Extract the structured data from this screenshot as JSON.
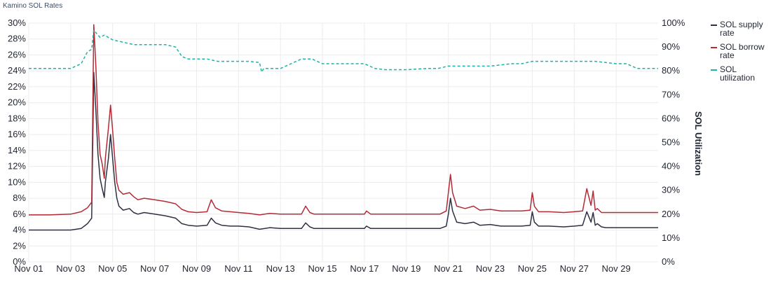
{
  "title": "Kamino SOL Rates",
  "colors": {
    "supply": "#2d3142",
    "borrow": "#b42a35",
    "utilization": "#1fb3a5",
    "grid": "#ececec"
  },
  "chart_data": {
    "type": "line",
    "title": "Kamino SOL Rates",
    "ylabel": "",
    "y2label": "SOL Utilization",
    "ylim": [
      0,
      30
    ],
    "y2lim": [
      0,
      100
    ],
    "y_ticks": [
      "0%",
      "2%",
      "4%",
      "6%",
      "8%",
      "10%",
      "12%",
      "14%",
      "16%",
      "18%",
      "20%",
      "22%",
      "24%",
      "26%",
      "28%",
      "30%"
    ],
    "y2_ticks": [
      "0%",
      "10%",
      "20%",
      "30%",
      "40%",
      "50%",
      "60%",
      "70%",
      "80%",
      "90%",
      "100%"
    ],
    "x_ticks": [
      {
        "day": 1,
        "label": "Nov 01"
      },
      {
        "day": 3,
        "label": "Nov 03"
      },
      {
        "day": 5,
        "label": "Nov 05"
      },
      {
        "day": 7,
        "label": "Nov 07"
      },
      {
        "day": 9,
        "label": "Nov 09"
      },
      {
        "day": 11,
        "label": "Nov 11"
      },
      {
        "day": 13,
        "label": "Nov 13"
      },
      {
        "day": 15,
        "label": "Nov 15"
      },
      {
        "day": 17,
        "label": "Nov 17"
      },
      {
        "day": 19,
        "label": "Nov 19"
      },
      {
        "day": 21,
        "label": "Nov 21"
      },
      {
        "day": 23,
        "label": "Nov 23"
      },
      {
        "day": 25,
        "label": "Nov 25"
      },
      {
        "day": 27,
        "label": "Nov 27"
      },
      {
        "day": 29,
        "label": "Nov 29"
      }
    ],
    "xlim": [
      1,
      31
    ],
    "grid": true,
    "legend_position": "right",
    "series": [
      {
        "name": "SOL supply rate",
        "axis": "left",
        "style": "solid",
        "color": "#2d3142",
        "x": [
          1,
          2,
          3,
          3.5,
          3.8,
          4.0,
          4.1,
          4.2,
          4.3,
          4.4,
          4.5,
          4.6,
          4.65,
          4.8,
          4.9,
          5.0,
          5.1,
          5.2,
          5.3,
          5.5,
          5.8,
          6.0,
          6.2,
          6.5,
          7.0,
          7.5,
          8.0,
          8.3,
          8.6,
          9.0,
          9.5,
          9.7,
          9.9,
          10.2,
          10.6,
          11.0,
          11.5,
          12.0,
          12.5,
          13.0,
          14.0,
          14.2,
          14.4,
          14.6,
          15.0,
          16.0,
          17.0,
          17.1,
          17.3,
          18.0,
          19.0,
          20.0,
          20.6,
          20.9,
          21.0,
          21.1,
          21.2,
          21.4,
          21.8,
          22.2,
          22.5,
          23.0,
          23.5,
          24.0,
          24.5,
          24.9,
          25.0,
          25.1,
          25.3,
          25.8,
          26.5,
          27.0,
          27.4,
          27.6,
          27.8,
          27.9,
          28.0,
          28.1,
          28.3,
          28.5,
          29.0,
          30.0,
          31.0
        ],
        "y": [
          4.0,
          4.0,
          4.0,
          4.2,
          4.8,
          5.5,
          23.8,
          19.0,
          13.5,
          10.5,
          9.2,
          8.1,
          10.0,
          13.0,
          16.0,
          13.0,
          10.0,
          8.0,
          7.0,
          6.5,
          6.7,
          6.2,
          6.0,
          6.2,
          6.0,
          5.8,
          5.5,
          4.8,
          4.6,
          4.5,
          4.6,
          5.5,
          4.9,
          4.6,
          4.5,
          4.5,
          4.4,
          4.1,
          4.3,
          4.2,
          4.2,
          4.9,
          4.4,
          4.2,
          4.2,
          4.2,
          4.2,
          4.5,
          4.2,
          4.2,
          4.2,
          4.2,
          4.2,
          4.5,
          6.0,
          8.0,
          6.4,
          5.0,
          4.8,
          5.0,
          4.6,
          4.7,
          4.5,
          4.5,
          4.5,
          4.6,
          6.3,
          5.0,
          4.5,
          4.5,
          4.4,
          4.5,
          4.6,
          6.3,
          5.0,
          6.2,
          4.6,
          4.8,
          4.4,
          4.3,
          4.3,
          4.3,
          4.3
        ]
      },
      {
        "name": "SOL borrow rate",
        "axis": "left",
        "style": "solid",
        "color": "#b42a35",
        "x": [
          1,
          2,
          3,
          3.5,
          3.8,
          4.0,
          4.1,
          4.2,
          4.3,
          4.4,
          4.5,
          4.6,
          4.65,
          4.8,
          4.9,
          5.0,
          5.1,
          5.2,
          5.3,
          5.5,
          5.8,
          6.0,
          6.2,
          6.5,
          7.0,
          7.5,
          8.0,
          8.3,
          8.6,
          9.0,
          9.5,
          9.7,
          9.9,
          10.2,
          10.6,
          11.0,
          11.5,
          12.0,
          12.5,
          13.0,
          14.0,
          14.2,
          14.4,
          14.6,
          15.0,
          16.0,
          17.0,
          17.1,
          17.3,
          18.0,
          19.0,
          20.0,
          20.6,
          20.9,
          21.0,
          21.1,
          21.2,
          21.4,
          21.8,
          22.2,
          22.5,
          23.0,
          23.5,
          24.0,
          24.5,
          24.9,
          25.0,
          25.1,
          25.3,
          25.8,
          26.5,
          27.0,
          27.4,
          27.6,
          27.8,
          27.9,
          28.0,
          28.1,
          28.3,
          28.5,
          29.0,
          30.0,
          31.0
        ],
        "y": [
          5.9,
          5.9,
          6.0,
          6.3,
          6.8,
          7.5,
          29.8,
          24.5,
          17.5,
          13.5,
          12.3,
          10.5,
          13.0,
          16.8,
          19.7,
          16.5,
          13.0,
          10.0,
          9.0,
          8.5,
          8.7,
          8.2,
          7.8,
          8.0,
          7.8,
          7.6,
          7.3,
          6.6,
          6.3,
          6.2,
          6.3,
          7.8,
          6.8,
          6.4,
          6.3,
          6.2,
          6.1,
          5.9,
          6.1,
          6.0,
          6.0,
          7.0,
          6.2,
          6.0,
          6.0,
          6.0,
          6.0,
          6.4,
          6.0,
          6.0,
          6.0,
          6.0,
          6.0,
          6.4,
          8.7,
          11.0,
          8.7,
          7.0,
          6.7,
          7.0,
          6.5,
          6.6,
          6.4,
          6.4,
          6.4,
          6.5,
          8.7,
          7.0,
          6.3,
          6.3,
          6.2,
          6.3,
          6.4,
          9.2,
          7.1,
          8.9,
          6.5,
          6.7,
          6.2,
          6.2,
          6.2,
          6.2,
          6.2
        ]
      },
      {
        "name": "SOL utilization",
        "axis": "right",
        "style": "dashed",
        "color": "#1fb3a5",
        "x": [
          1,
          2,
          3,
          3.5,
          3.8,
          4.0,
          4.1,
          4.2,
          4.4,
          4.6,
          5.0,
          5.5,
          6.0,
          6.5,
          7.0,
          7.5,
          8.0,
          8.3,
          8.6,
          9.0,
          9.5,
          10.0,
          10.5,
          11.0,
          11.5,
          12.0,
          12.1,
          12.2,
          12.5,
          13.0,
          13.5,
          14.0,
          14.5,
          15.0,
          16.0,
          17.0,
          17.5,
          18.0,
          19.0,
          20.0,
          20.5,
          21.0,
          22.0,
          23.0,
          24.0,
          24.5,
          25.0,
          26.0,
          27.0,
          28.0,
          29.0,
          29.5,
          30.0,
          31.0
        ],
        "y": [
          81,
          81,
          81,
          83,
          88,
          89,
          97,
          96,
          94,
          95,
          93,
          92,
          91,
          91,
          91,
          91,
          90,
          86,
          85,
          85,
          85,
          84,
          84,
          84,
          84,
          83.5,
          79.5,
          81,
          81,
          81,
          83,
          85,
          85,
          83,
          83,
          83,
          81,
          80.5,
          80.5,
          81,
          81,
          82,
          82,
          82,
          83,
          83,
          84,
          84,
          84,
          84,
          83,
          83,
          81,
          81
        ]
      }
    ]
  }
}
